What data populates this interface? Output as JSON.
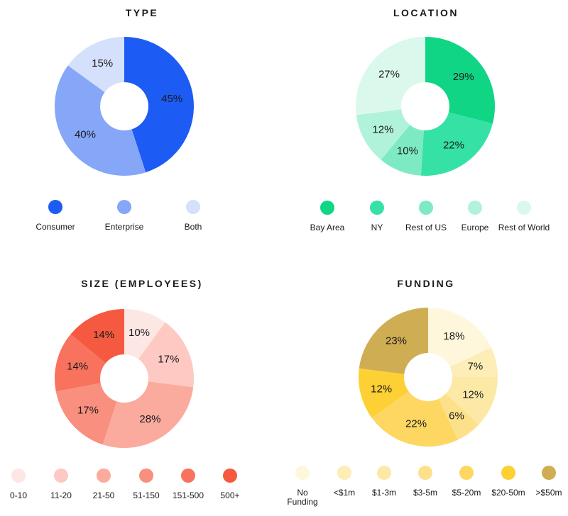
{
  "chart_data": [
    {
      "id": "type",
      "type": "pie",
      "title": "TYPE",
      "categories": [
        "Consumer",
        "Enterprise",
        "Both"
      ],
      "values": [
        45,
        40,
        15
      ],
      "labels": [
        "45%",
        "40%",
        "15%"
      ],
      "colors": [
        "#1d5bf5",
        "#86a6f8",
        "#d5e0fc"
      ]
    },
    {
      "id": "location",
      "type": "pie",
      "title": "LOCATION",
      "categories": [
        "Bay Area",
        "NY",
        "Rest of US",
        "Europe",
        "Rest of World"
      ],
      "values": [
        29,
        22,
        10,
        12,
        27
      ],
      "labels": [
        "29%",
        "22%",
        "10%",
        "12%",
        "27%"
      ],
      "colors": [
        "#0fd585",
        "#36e1a5",
        "#7eeac4",
        "#b1f2da",
        "#daf9ec"
      ]
    },
    {
      "id": "size",
      "type": "pie",
      "title": "SIZE (EMPLOYEES)",
      "categories": [
        "0-10",
        "11-20",
        "21-50",
        "51-150",
        "151-500",
        "500+"
      ],
      "values": [
        10,
        17,
        28,
        17,
        14,
        14
      ],
      "labels": [
        "10%",
        "17%",
        "28%",
        "17%",
        "14%",
        "14%"
      ],
      "colors": [
        "#fde7e5",
        "#fdc9c2",
        "#fbab9d",
        "#f98f7e",
        "#f8725e",
        "#f55a40"
      ]
    },
    {
      "id": "funding",
      "type": "pie",
      "title": "FUNDING",
      "categories": [
        "No\nFunding",
        "<$1m",
        "$1-3m",
        "$3-5m",
        "$5-20m",
        "$20-50m",
        ">$50m"
      ],
      "values": [
        18,
        7,
        12,
        6,
        22,
        12,
        23
      ],
      "labels": [
        "18%",
        "7%",
        "12%",
        "6%",
        "22%",
        "12%",
        "23%"
      ],
      "colors": [
        "#fff7dc",
        "#fdedb6",
        "#fde9a6",
        "#fde08a",
        "#fdd761",
        "#fdd033",
        "#cfad53"
      ]
    }
  ]
}
